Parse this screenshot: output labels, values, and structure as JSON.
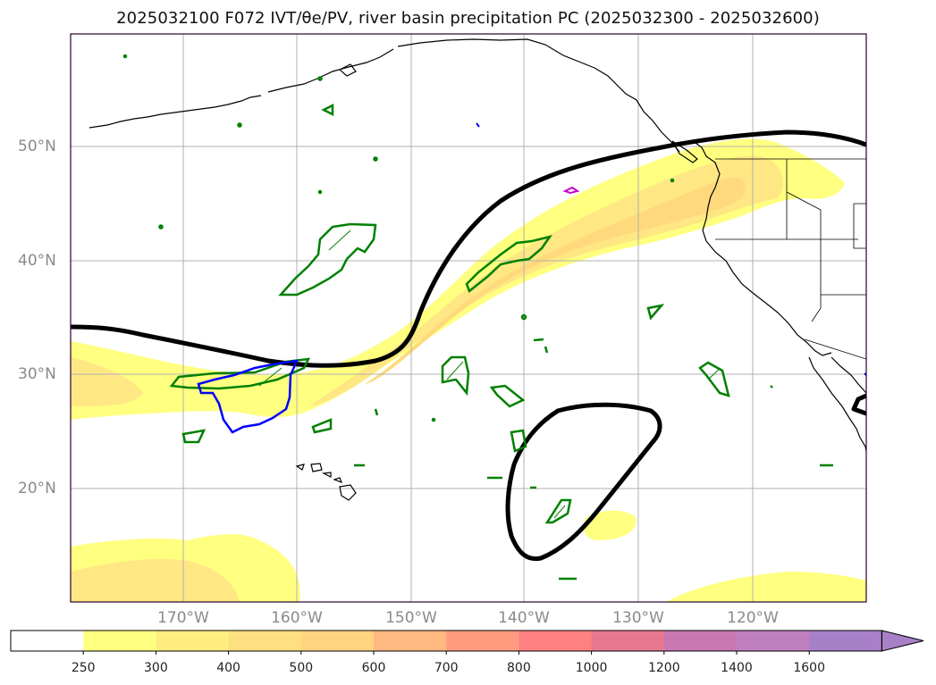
{
  "title": "2025032100 F072 IVT/θe/PV, river basin precipitation PC (2025032300 - 2025032600)",
  "map": {
    "lat_ticks": [
      "50°N",
      "40°N",
      "30°N",
      "20°N"
    ],
    "lon_ticks": [
      "170°W",
      "160°W",
      "150°W",
      "140°W",
      "130°W",
      "120°W"
    ],
    "lon_range": [
      -180,
      -110
    ],
    "lat_range": [
      10,
      60
    ],
    "grid": true
  },
  "colorbar": {
    "levels": [
      "250",
      "300",
      "400",
      "500",
      "600",
      "700",
      "800",
      "1000",
      "1200",
      "1400",
      "1600"
    ],
    "colors": [
      "#ffffff",
      "#ffff80",
      "#ffed80",
      "#ffe080",
      "#ffd480",
      "#ffb880",
      "#ff9c80",
      "#ff8080",
      "#e87890",
      "#c878b0",
      "#c080c0",
      "#a880c8"
    ],
    "extend": "max"
  },
  "colors": {
    "ivt_light": "#ffff80",
    "ivt_mid": "#ffe080",
    "ivt_dark": "#f8c878",
    "theta_contour": "#000000",
    "pv_contour_green": "#008000",
    "pv_contour_blue": "#0000ff",
    "pv_contour_magenta": "#cc00cc",
    "coast": "#000000",
    "grid": "#b0b0b0"
  }
}
